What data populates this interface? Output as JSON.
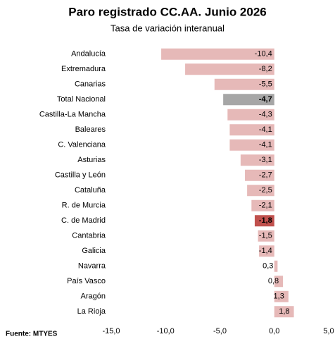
{
  "chart_data": {
    "type": "barh",
    "title": "Paro registrado  CC.AA. Junio 2026",
    "subtitle": "Tasa de variación interanual",
    "source": "Fuente: MTYES",
    "categories": [
      "Andalucía",
      "Extremadura",
      "Canarias",
      "Total Nacional",
      "Castilla-La Mancha",
      "Baleares",
      "C. Valenciana",
      "Asturias",
      "Castilla y León",
      "Cataluña",
      "R. de Murcia",
      "C. de Madrid",
      "Cantabria",
      "Galicia",
      "Navarra",
      "País Vasco",
      "Aragón",
      "La Rioja"
    ],
    "values": [
      -10.4,
      -8.2,
      -5.5,
      -4.7,
      -4.3,
      -4.1,
      -4.1,
      -3.1,
      -2.7,
      -2.5,
      -2.1,
      -1.8,
      -1.5,
      -1.4,
      0.3,
      0.8,
      1.3,
      1.8
    ],
    "value_labels": [
      "-10,4",
      "-8,2",
      "-5,5",
      "-4,7",
      "-4,3",
      "-4,1",
      "-4,1",
      "-3,1",
      "-2,7",
      "-2,5",
      "-2,1",
      "-1,8",
      "-1,5",
      "-1,4",
      "0,3",
      "0,8",
      "1,3",
      "1,8"
    ],
    "color": "#e6b9b8",
    "colors": [
      "#e6b9b8",
      "#e6b9b8",
      "#e6b9b8",
      "#a6a6a6",
      "#e6b9b8",
      "#e6b9b8",
      "#e6b9b8",
      "#e6b9b8",
      "#e6b9b8",
      "#e6b9b8",
      "#e6b9b8",
      "#c0504d",
      "#e6b9b8",
      "#e6b9b8",
      "#e6b9b8",
      "#e6b9b8",
      "#e6b9b8",
      "#e6b9b8"
    ],
    "xlim": [
      -15,
      5
    ],
    "xticks": [
      {
        "value": -15,
        "label": "-15,0"
      },
      {
        "value": -10,
        "label": "-10,0"
      },
      {
        "value": -5,
        "label": "-5,0"
      },
      {
        "value": 0,
        "label": "0,0"
      },
      {
        "value": 5,
        "label": "5,0"
      }
    ],
    "grid": false
  }
}
